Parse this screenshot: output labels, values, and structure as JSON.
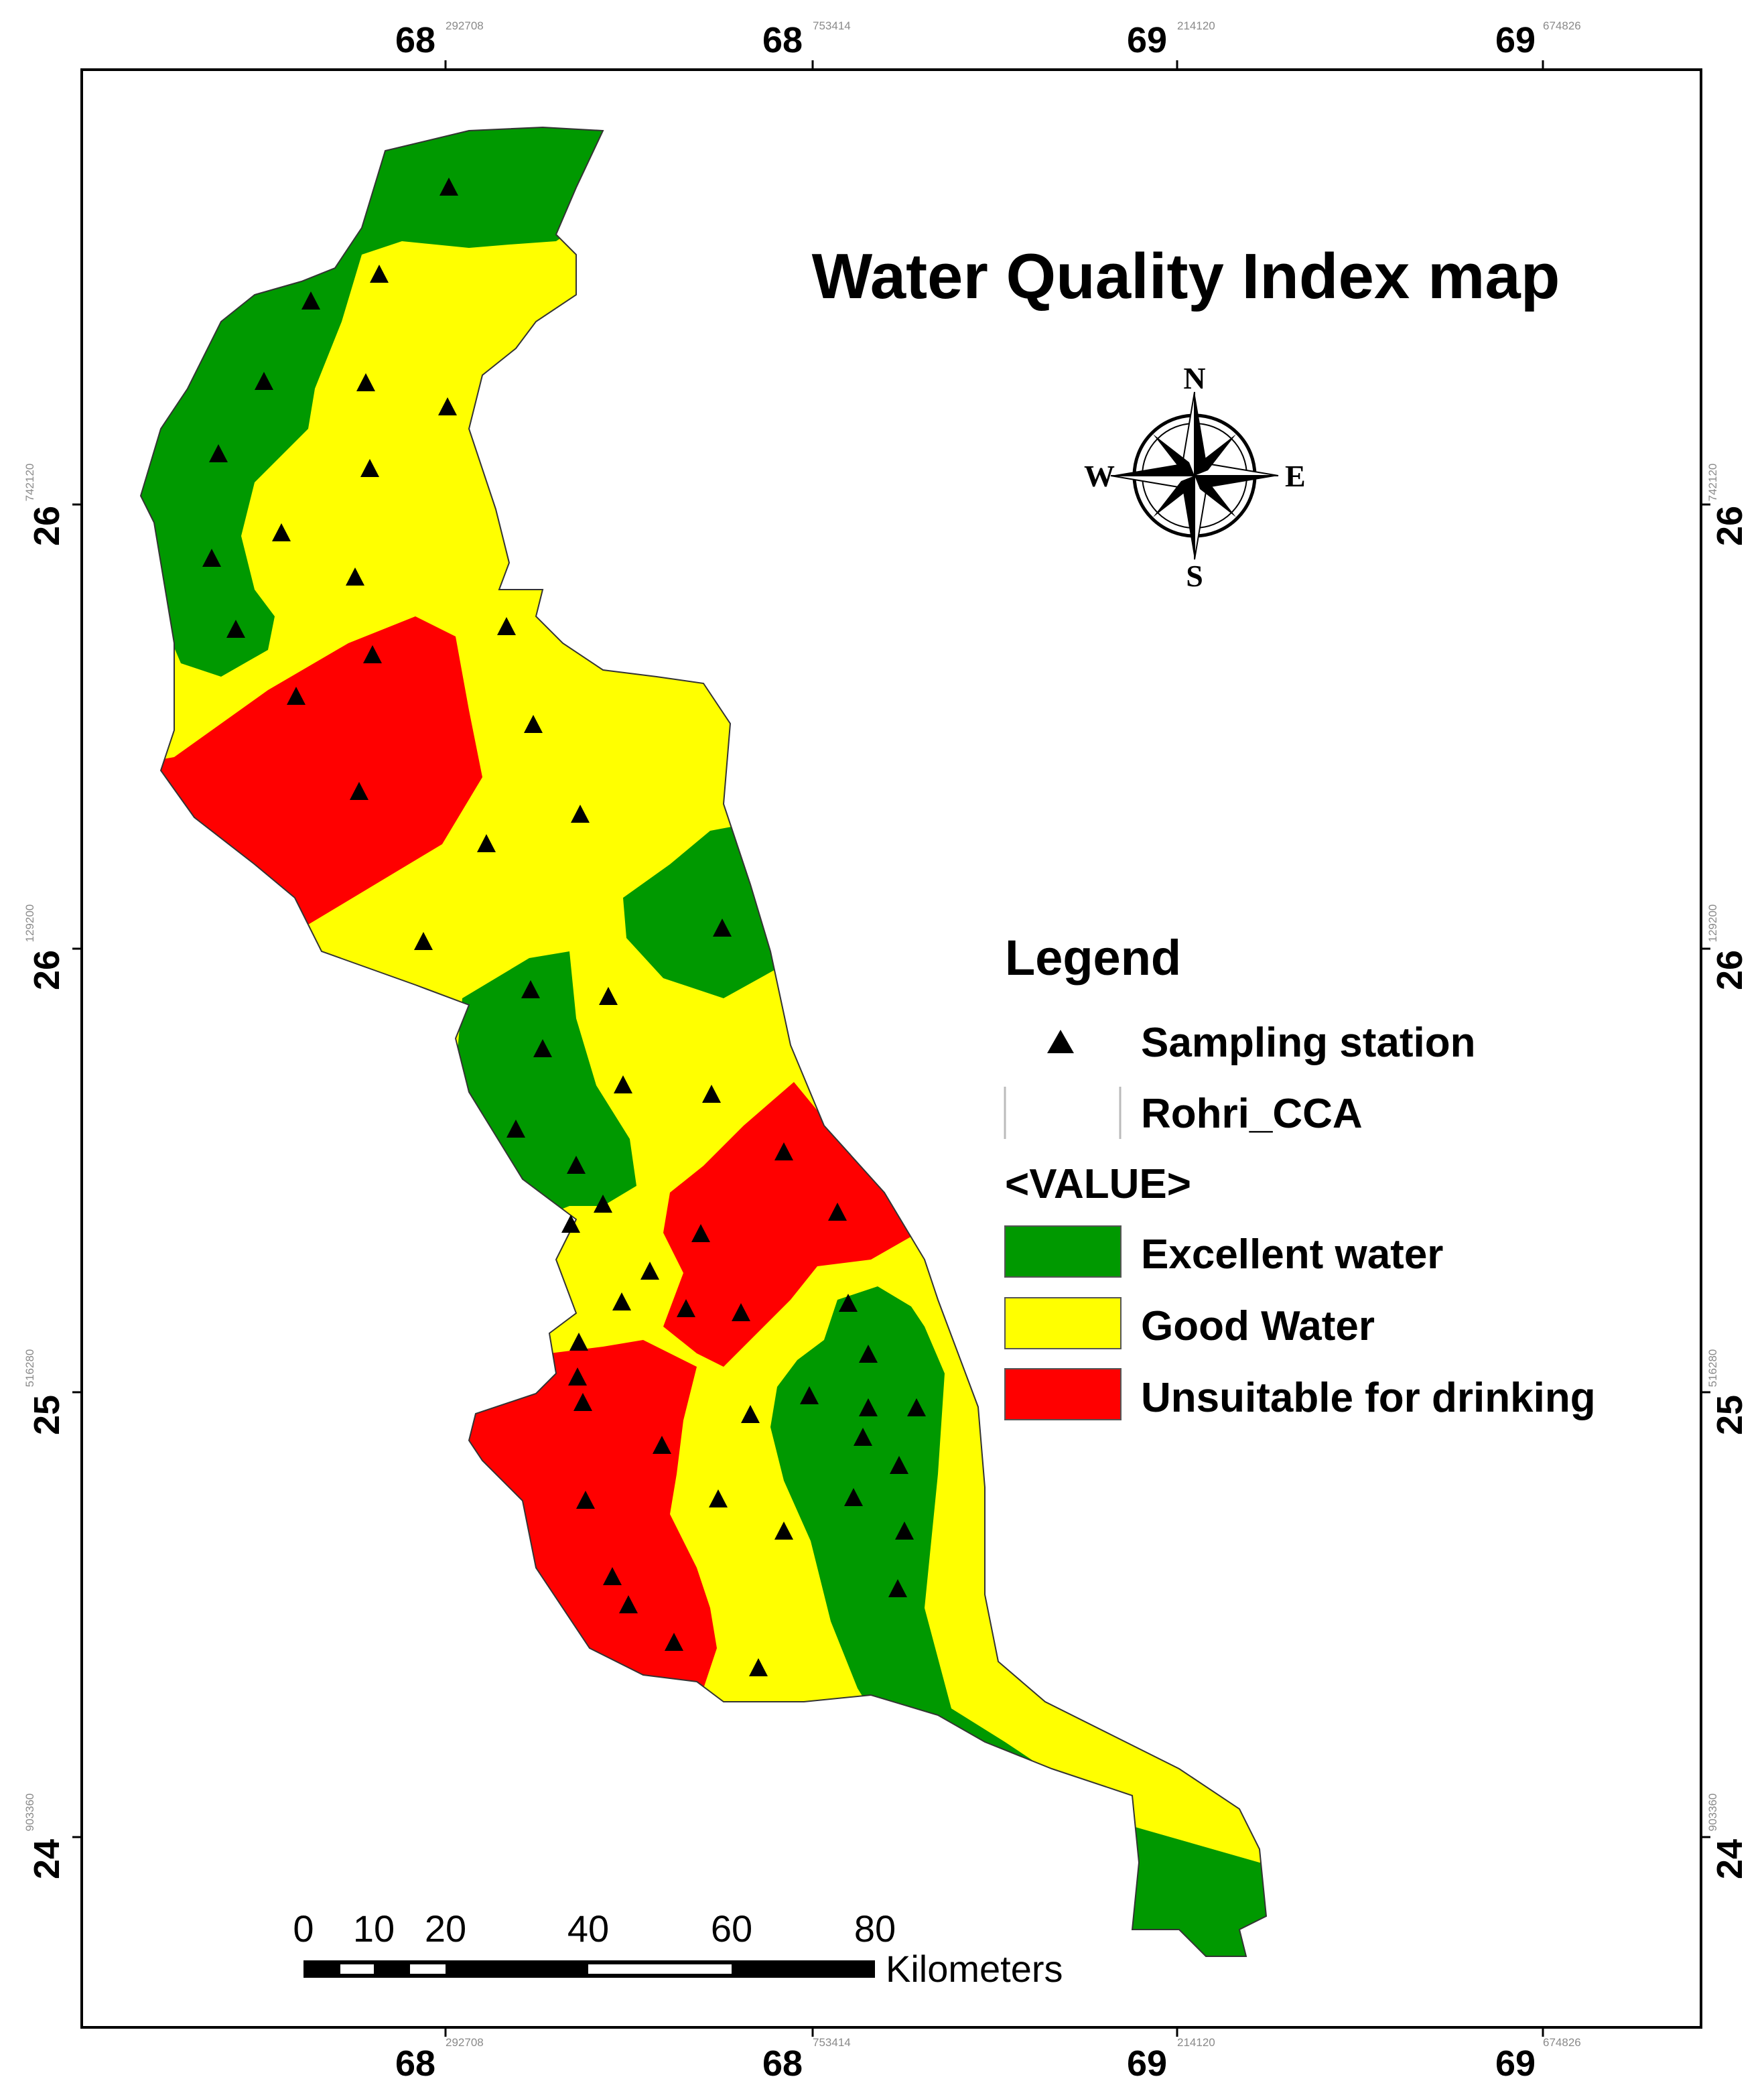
{
  "map": {
    "title": "Water Quality Index map",
    "top_axis": [
      {
        "deg": "68",
        "sub": "292708"
      },
      {
        "deg": "68",
        "sub": "753414"
      },
      {
        "deg": "69",
        "sub": "214120"
      },
      {
        "deg": "69",
        "sub": "674826"
      }
    ],
    "bottom_axis": [
      {
        "deg": "68",
        "sub": "292708"
      },
      {
        "deg": "68",
        "sub": "753414"
      },
      {
        "deg": "69",
        "sub": "214120"
      },
      {
        "deg": "69",
        "sub": "674826"
      }
    ],
    "left_axis": [
      {
        "deg": "26",
        "sub": "742120"
      },
      {
        "deg": "26",
        "sub": "129200"
      },
      {
        "deg": "25",
        "sub": "516280"
      },
      {
        "deg": "24",
        "sub": "903360"
      }
    ],
    "right_axis": [
      {
        "deg": "26",
        "sub": "742120"
      },
      {
        "deg": "26",
        "sub": "129200"
      },
      {
        "deg": "25",
        "sub": "516280"
      },
      {
        "deg": "24",
        "sub": "903360"
      }
    ]
  },
  "compass": {
    "north": "N",
    "south": "S",
    "east": "E",
    "west": "W"
  },
  "legend": {
    "title": "Legend",
    "station_label": "Sampling station",
    "boundary_label": "Rohri_CCA",
    "value_heading": "<VALUE>",
    "classes": [
      {
        "label": "Excellent water",
        "color": "#009900"
      },
      {
        "label": "Good Water",
        "color": "#ffff00"
      },
      {
        "label": "Unsuitable for drinking",
        "color": "#ff0000"
      }
    ]
  },
  "scale_bar": {
    "ticks": [
      "0",
      "10",
      "20",
      "40",
      "60",
      "80"
    ],
    "unit": "Kilometers"
  }
}
